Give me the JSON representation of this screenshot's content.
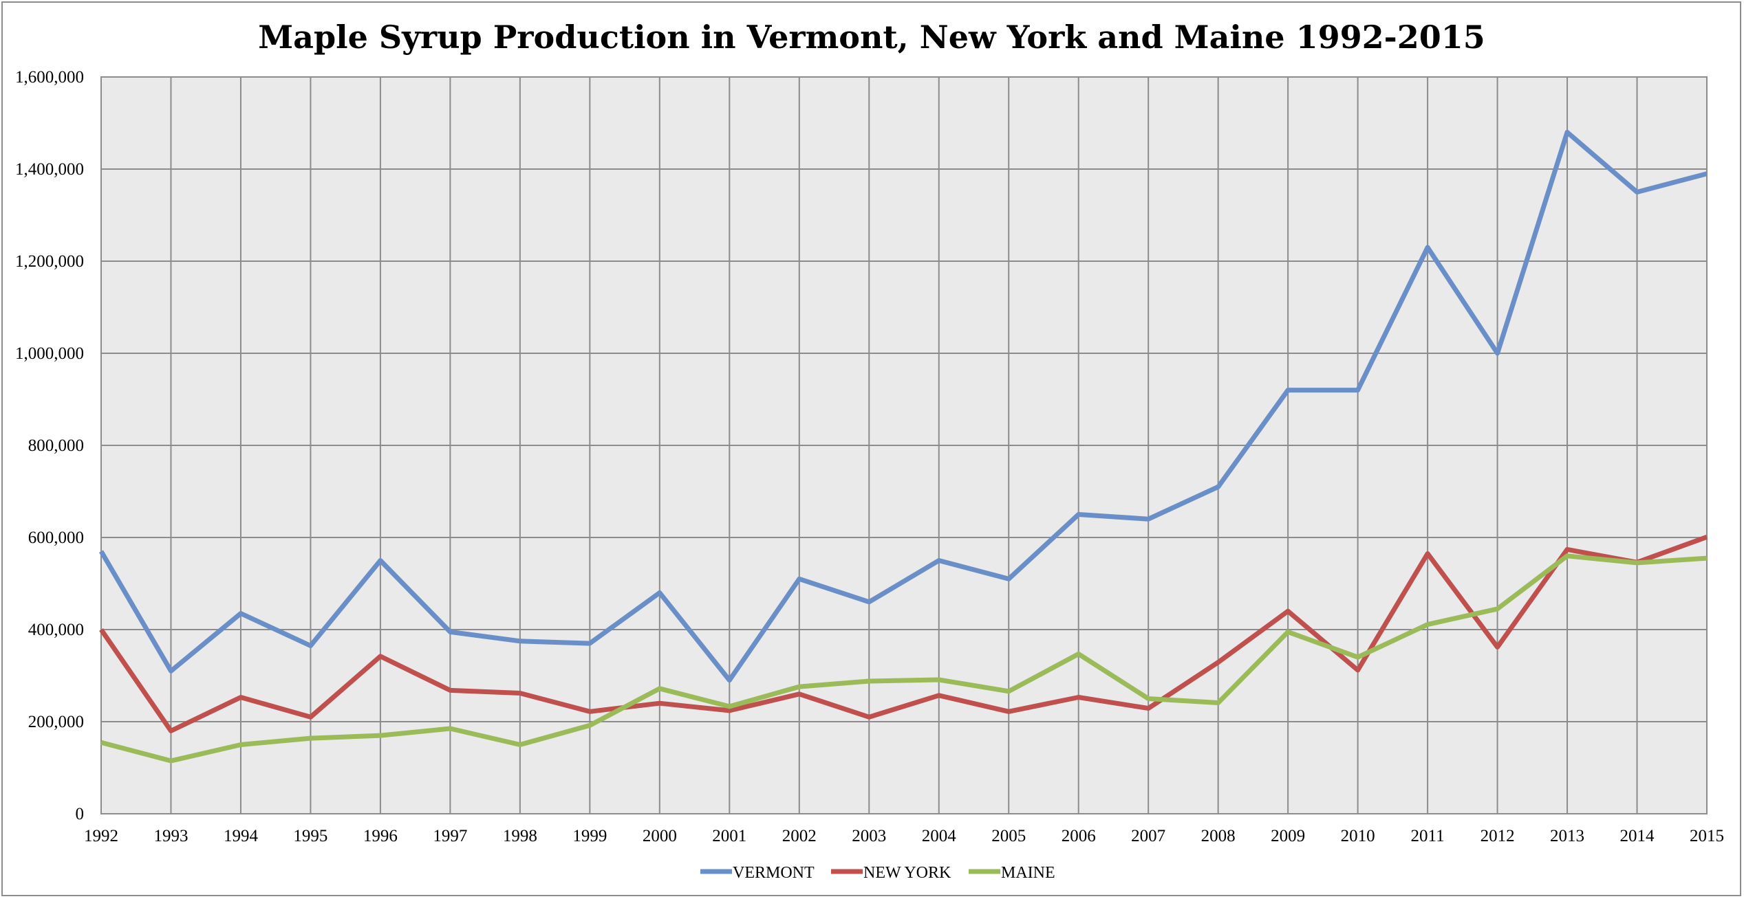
{
  "chart_data": {
    "type": "line",
    "title": "Maple Syrup Production in Vermont, New York and Maine 1992-2015",
    "xlabel": "",
    "ylabel": "",
    "x": [
      "1992",
      "1993",
      "1994",
      "1995",
      "1996",
      "1997",
      "1998",
      "1999",
      "2000",
      "2001",
      "2002",
      "2003",
      "2004",
      "2005",
      "2006",
      "2007",
      "2008",
      "2009",
      "2010",
      "2011",
      "2012",
      "2013",
      "2014",
      "2015"
    ],
    "ylim": [
      0,
      1600000
    ],
    "yticks": [
      0,
      200000,
      400000,
      600000,
      800000,
      1000000,
      1200000,
      1400000,
      1600000
    ],
    "ytick_labels": [
      "0",
      "200,000",
      "400,000",
      "600,000",
      "800,000",
      "1,000,000",
      "1,200,000",
      "1,400,000",
      "1,600,000"
    ],
    "grid": true,
    "legend_position": "bottom",
    "series": [
      {
        "name": "VERMONT",
        "color": "#6A8FC8",
        "values": [
          570000,
          310000,
          435000,
          365000,
          550000,
          395000,
          375000,
          370000,
          480000,
          290000,
          510000,
          460000,
          550000,
          510000,
          650000,
          640000,
          710000,
          920000,
          920000,
          1230000,
          1000000,
          1480000,
          1350000,
          1390000
        ]
      },
      {
        "name": "NEW YORK",
        "color": "#C0504D",
        "values": [
          400000,
          180000,
          253000,
          210000,
          342000,
          268000,
          262000,
          222000,
          240000,
          224000,
          260000,
          210000,
          257000,
          222000,
          253000,
          229000,
          329000,
          440000,
          312000,
          565000,
          362000,
          574000,
          546000,
          601000
        ]
      },
      {
        "name": "MAINE",
        "color": "#9BBB59",
        "values": [
          155000,
          115000,
          150000,
          164000,
          170000,
          185000,
          150000,
          192000,
          272000,
          233000,
          276000,
          288000,
          291000,
          266000,
          347000,
          250000,
          241000,
          395000,
          340000,
          411000,
          445000,
          560000,
          545000,
          555000
        ]
      }
    ]
  }
}
